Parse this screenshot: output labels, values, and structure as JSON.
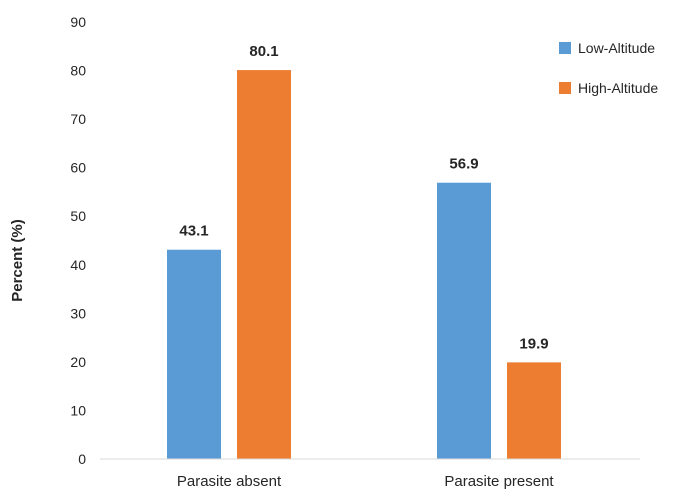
{
  "chart_data": {
    "type": "bar",
    "categories": [
      "Parasite absent",
      "Parasite present"
    ],
    "series": [
      {
        "name": "Low-Altitude",
        "values": [
          43.1,
          56.9
        ],
        "color": "#5B9BD5"
      },
      {
        "name": "High-Altitude",
        "values": [
          80.1,
          19.9
        ],
        "color": "#ED7D31"
      }
    ],
    "data_labels": [
      [
        "43.1",
        "56.9"
      ],
      [
        "80.1",
        "19.9"
      ]
    ],
    "xlabel": "",
    "ylabel": "Percent (%)",
    "ylim": [
      0,
      90
    ],
    "yticks": [
      0,
      10,
      20,
      30,
      40,
      50,
      60,
      70,
      80,
      90
    ],
    "grid": false,
    "legend_position": "top-right"
  }
}
